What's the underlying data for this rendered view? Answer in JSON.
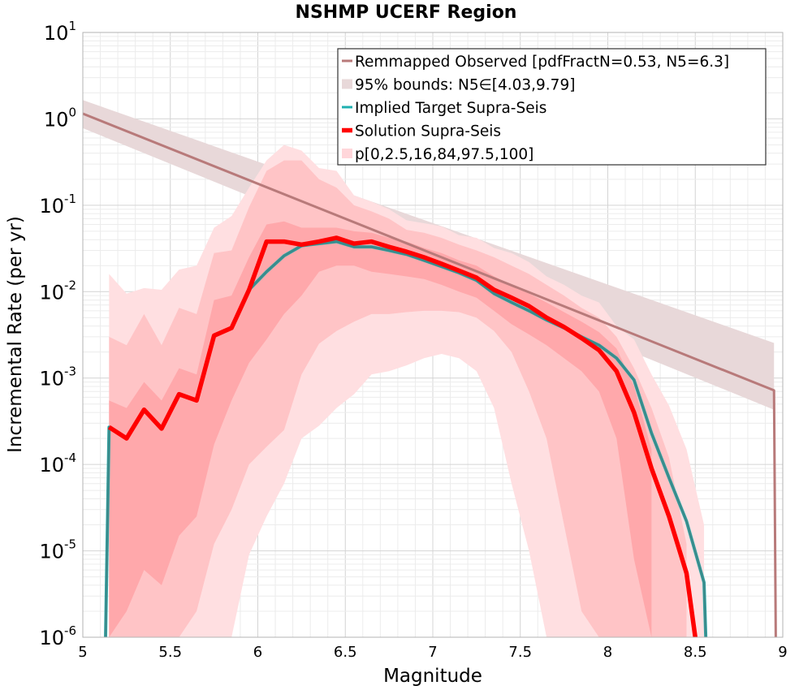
{
  "chart_data": {
    "type": "line",
    "title": "NSHMP UCERF Region",
    "xlabel": "Magnitude",
    "ylabel": "Incremental Rate (per yr)",
    "xlim": [
      5,
      9
    ],
    "ylim": [
      1e-06,
      10
    ],
    "y_scale": "log",
    "grid": true,
    "legend_position": "top-right",
    "x_ticks": [
      "5",
      "5.5",
      "6",
      "6.5",
      "7",
      "7.5",
      "8",
      "8.5",
      "9"
    ],
    "y_ticks": [
      {
        "base": "10",
        "exp": "1"
      },
      {
        "base": "10",
        "exp": "0"
      },
      {
        "base": "10",
        "exp": "-1"
      },
      {
        "base": "10",
        "exp": "-2"
      },
      {
        "base": "10",
        "exp": "-3"
      },
      {
        "base": "10",
        "exp": "-4"
      },
      {
        "base": "10",
        "exp": "-5"
      },
      {
        "base": "10",
        "exp": "-6"
      }
    ],
    "legend": [
      {
        "label": "Remmapped Observed [pdfFractN=0.53, N5=6.3]",
        "style": "line",
        "color": "#b87a7a"
      },
      {
        "label": "95% bounds: N5∈[4.03,9.79]",
        "style": "band",
        "color": "#e8d8d9"
      },
      {
        "label": "Implied Target Supra-Seis",
        "style": "line",
        "color": "#1fb0b0"
      },
      {
        "label": "Solution Supra-Seis",
        "style": "thick-line",
        "color": "#ff0000"
      },
      {
        "label": "p[0,2.5,16,84,97.5,100]",
        "style": "band",
        "color": "#ffd6da"
      }
    ],
    "series": [
      {
        "name": "Remmapped Observed [pdfFractN=0.53, N5=6.3]",
        "color": "#b87a7a",
        "x": [
          5.0,
          8.95,
          8.96
        ],
        "values": [
          1.15,
          0.00072,
          1e-06
        ]
      },
      {
        "name": "Implied Target Supra-Seis",
        "color": "#1fb0b0",
        "x": [
          5.13,
          5.15,
          5.25,
          5.35,
          5.45,
          5.55,
          5.65,
          5.75,
          5.85,
          5.95,
          6.05,
          6.15,
          6.25,
          6.35,
          6.45,
          6.55,
          6.65,
          6.75,
          6.85,
          6.95,
          7.05,
          7.15,
          7.25,
          7.35,
          7.45,
          7.55,
          7.65,
          7.75,
          7.85,
          7.95,
          8.05,
          8.15,
          8.25,
          8.35,
          8.45,
          8.55,
          8.56
        ],
        "values": [
          1e-06,
          0.00027,
          0.0002,
          0.00043,
          0.00026,
          0.00065,
          0.00055,
          0.0031,
          0.0038,
          0.0105,
          0.017,
          0.026,
          0.034,
          0.036,
          0.038,
          0.033,
          0.033,
          0.03,
          0.027,
          0.023,
          0.0195,
          0.0165,
          0.0135,
          0.0095,
          0.0075,
          0.006,
          0.0047,
          0.0038,
          0.003,
          0.0024,
          0.0017,
          0.00095,
          0.00023,
          7e-05,
          2.2e-05,
          4.3e-06,
          1e-06
        ]
      },
      {
        "name": "Solution Supra-Seis",
        "color": "#ff0000",
        "x": [
          5.15,
          5.25,
          5.35,
          5.45,
          5.55,
          5.65,
          5.75,
          5.85,
          5.95,
          6.05,
          6.15,
          6.25,
          6.35,
          6.45,
          6.55,
          6.65,
          6.75,
          6.85,
          6.95,
          7.05,
          7.15,
          7.25,
          7.35,
          7.45,
          7.55,
          7.65,
          7.75,
          7.85,
          7.95,
          8.05,
          8.15,
          8.25,
          8.35,
          8.45,
          8.5
        ],
        "values": [
          0.00027,
          0.0002,
          0.00043,
          0.00026,
          0.00065,
          0.00055,
          0.0031,
          0.0038,
          0.0105,
          0.038,
          0.038,
          0.035,
          0.038,
          0.042,
          0.036,
          0.038,
          0.033,
          0.029,
          0.025,
          0.021,
          0.0175,
          0.0145,
          0.0105,
          0.0085,
          0.0068,
          0.005,
          0.0039,
          0.0029,
          0.0021,
          0.0012,
          0.0004,
          9e-05,
          2.5e-05,
          5.5e-06,
          1e-06
        ]
      }
    ],
    "bands": [
      {
        "name": "95% bounds: N5∈[4.03,9.79]",
        "color": "#e8d8d9",
        "x": [
          5.0,
          8.95
        ],
        "lower": [
          0.78,
          0.00043
        ],
        "upper": [
          1.65,
          0.00255
        ]
      },
      {
        "name": "p0-p100",
        "color": "#ffdfe1",
        "x": [
          5.15,
          5.25,
          5.35,
          5.45,
          5.55,
          5.65,
          5.75,
          5.85,
          5.95,
          6.05,
          6.15,
          6.25,
          6.35,
          6.45,
          6.55,
          6.65,
          6.75,
          6.85,
          6.95,
          7.05,
          7.15,
          7.25,
          7.35,
          7.45,
          7.55,
          7.65,
          7.75,
          7.85,
          7.95,
          8.05,
          8.15,
          8.25,
          8.35,
          8.45,
          8.55
        ],
        "upper": [
          0.016,
          0.0095,
          0.011,
          0.0105,
          0.018,
          0.02,
          0.055,
          0.075,
          0.16,
          0.33,
          0.5,
          0.43,
          0.27,
          0.25,
          0.13,
          0.11,
          0.09,
          0.067,
          0.062,
          0.057,
          0.045,
          0.042,
          0.032,
          0.028,
          0.022,
          0.015,
          0.012,
          0.009,
          0.0075,
          0.004,
          0.0028,
          0.0011,
          0.00048,
          0.00015,
          2e-05
        ],
        "lower": [
          1e-06,
          1e-06,
          1e-06,
          1e-06,
          1e-06,
          1e-06,
          1e-06,
          1e-06,
          9e-06,
          2.5e-05,
          6e-05,
          0.0002,
          0.00028,
          0.00045,
          0.00065,
          0.0011,
          0.0012,
          0.0014,
          0.0017,
          0.0019,
          0.0017,
          0.0012,
          0.00045,
          6e-05,
          1e-05,
          1e-06,
          1e-06,
          1e-06,
          1e-06,
          1e-06,
          1e-06,
          1e-06,
          1e-06,
          1e-06,
          1e-06
        ]
      },
      {
        "name": "p2.5-p97.5",
        "color": "#ffc4c6",
        "x": [
          5.15,
          5.25,
          5.35,
          5.45,
          5.55,
          5.65,
          5.75,
          5.85,
          5.95,
          6.05,
          6.15,
          6.25,
          6.35,
          6.45,
          6.55,
          6.65,
          6.75,
          6.85,
          6.95,
          7.05,
          7.15,
          7.25,
          7.35,
          7.45,
          7.55,
          7.65,
          7.75,
          7.85,
          7.95,
          8.05,
          8.15,
          8.25,
          8.35,
          8.45
        ],
        "upper": [
          0.003,
          0.0024,
          0.0055,
          0.0024,
          0.0065,
          0.0055,
          0.028,
          0.03,
          0.095,
          0.25,
          0.33,
          0.33,
          0.2,
          0.16,
          0.1,
          0.085,
          0.07,
          0.052,
          0.048,
          0.042,
          0.035,
          0.03,
          0.025,
          0.02,
          0.016,
          0.012,
          0.009,
          0.0065,
          0.005,
          0.003,
          0.0013,
          0.00045,
          0.00012,
          1.2e-05
        ],
        "lower": [
          1e-06,
          1e-06,
          1e-06,
          1e-06,
          1e-06,
          2e-06,
          1.2e-05,
          3e-05,
          0.0001,
          0.00016,
          0.00025,
          0.0011,
          0.0025,
          0.0035,
          0.0045,
          0.0055,
          0.0055,
          0.0058,
          0.006,
          0.006,
          0.0058,
          0.005,
          0.0035,
          0.002,
          0.0007,
          0.0002,
          2e-05,
          2e-06,
          1e-06,
          1e-06,
          1e-06,
          1e-06,
          1e-06,
          1e-06
        ]
      },
      {
        "name": "p16-p84",
        "color": "#ffa8ab",
        "x": [
          5.15,
          5.25,
          5.35,
          5.45,
          5.55,
          5.65,
          5.75,
          5.85,
          5.95,
          6.05,
          6.15,
          6.25,
          6.35,
          6.45,
          6.55,
          6.65,
          6.75,
          6.85,
          6.95,
          7.05,
          7.15,
          7.25,
          7.35,
          7.45,
          7.55,
          7.65,
          7.75,
          7.85,
          7.95,
          8.05,
          8.15,
          8.25
        ],
        "upper": [
          0.00055,
          0.00045,
          0.0009,
          0.00055,
          0.0013,
          0.0011,
          0.008,
          0.009,
          0.025,
          0.06,
          0.065,
          0.055,
          0.055,
          0.055,
          0.05,
          0.048,
          0.042,
          0.038,
          0.032,
          0.028,
          0.023,
          0.02,
          0.015,
          0.012,
          0.0095,
          0.0075,
          0.0058,
          0.0045,
          0.0034,
          0.0022,
          0.0008,
          0.00015
        ],
        "lower": [
          1e-06,
          2e-06,
          6e-06,
          4e-06,
          1.5e-05,
          2.5e-05,
          0.00017,
          0.00055,
          0.0015,
          0.0028,
          0.0055,
          0.009,
          0.017,
          0.02,
          0.02,
          0.017,
          0.016,
          0.015,
          0.014,
          0.012,
          0.01,
          0.0085,
          0.006,
          0.0042,
          0.0032,
          0.0024,
          0.0017,
          0.0012,
          0.0007,
          0.0002,
          8e-06,
          1e-06
        ]
      }
    ]
  }
}
